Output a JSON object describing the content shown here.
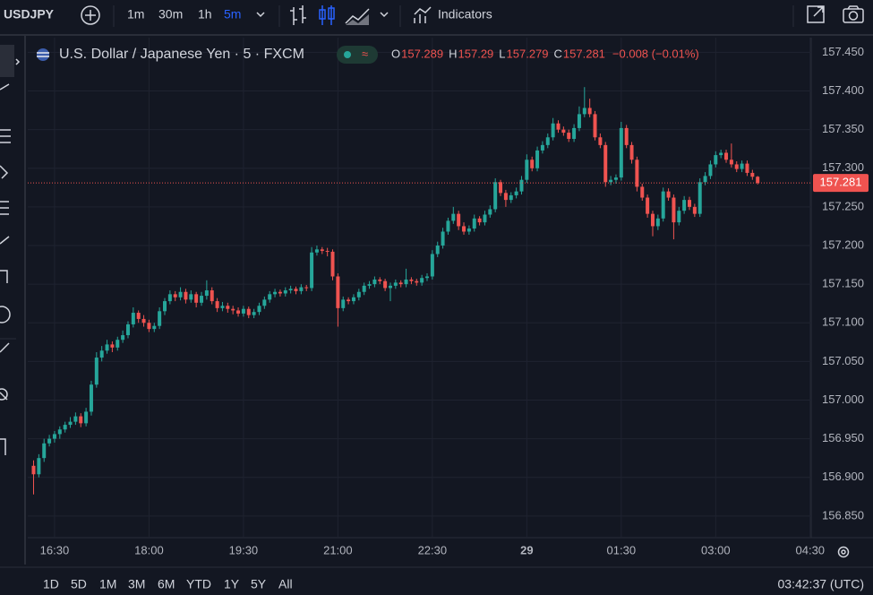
{
  "toolbar": {
    "symbol": "USDJPY",
    "intervals": [
      "1m",
      "30m",
      "1h",
      "5m"
    ],
    "active_interval": "5m",
    "indicators": "Indicators"
  },
  "chart_data": {
    "type": "candlestick",
    "title": "U.S. Dollar / Japanese Yen · 5 · FXCM",
    "ohlc_labels": [
      "O",
      "H",
      "L",
      "C"
    ],
    "change": "−0.008 (−0.01%)",
    "up_color": "#26a69a",
    "down_color": "#ef5350",
    "grid": true,
    "ylim": [
      156.822,
      157.469
    ],
    "yticks": [
      {
        "value": 157.45,
        "label": "157.450"
      },
      {
        "value": 157.4,
        "label": "157.400"
      },
      {
        "value": 157.35,
        "label": "157.350"
      },
      {
        "value": 157.3,
        "label": "157.300"
      },
      {
        "value": 157.25,
        "label": "157.250"
      },
      {
        "value": 157.2,
        "label": "157.200"
      },
      {
        "value": 157.15,
        "label": "157.150"
      },
      {
        "value": 157.1,
        "label": "157.100"
      },
      {
        "value": 157.05,
        "label": "157.050"
      },
      {
        "value": 157.0,
        "label": "157.000"
      },
      {
        "value": 156.95,
        "label": "156.950"
      },
      {
        "value": 156.9,
        "label": "156.900"
      },
      {
        "value": 156.85,
        "label": "156.850"
      }
    ],
    "xticks": [
      "16:30",
      "18:00",
      "19:30",
      "21:00",
      "22:30",
      {
        "value": "00:00",
        "label": "29"
      },
      "01:30",
      "03:00",
      "04:30"
    ],
    "x": [
      "16:10",
      "16:15",
      "16:20",
      "16:25",
      "16:30",
      "16:35",
      "16:40",
      "16:45",
      "16:50",
      "16:55",
      "17:00",
      "17:05",
      "17:10",
      "17:15",
      "17:20",
      "17:25",
      "17:30",
      "17:35",
      "17:40",
      "17:45",
      "17:50",
      "17:55",
      "18:00",
      "18:05",
      "18:10",
      "18:15",
      "18:20",
      "18:25",
      "18:30",
      "18:35",
      "18:40",
      "18:45",
      "18:50",
      "18:55",
      "19:00",
      "19:05",
      "19:10",
      "19:15",
      "19:20",
      "19:25",
      "19:30",
      "19:35",
      "19:40",
      "19:45",
      "19:50",
      "19:55",
      "20:00",
      "20:05",
      "20:10",
      "20:15",
      "20:20",
      "20:25",
      "20:30",
      "20:35",
      "20:40",
      "20:45",
      "20:50",
      "20:55",
      "21:00",
      "21:05",
      "21:10",
      "21:15",
      "21:20",
      "21:25",
      "21:30",
      "21:35",
      "21:40",
      "21:45",
      "21:50",
      "21:55",
      "22:00",
      "22:05",
      "22:10",
      "22:15",
      "22:20",
      "22:25",
      "22:30",
      "22:35",
      "22:40",
      "22:45",
      "22:50",
      "22:55",
      "23:00",
      "23:05",
      "23:10",
      "23:15",
      "23:20",
      "23:25",
      "23:30",
      "23:35",
      "23:40",
      "23:45",
      "23:50",
      "23:55",
      "00:00",
      "00:05",
      "00:10",
      "00:15",
      "00:20",
      "00:25",
      "00:30",
      "00:35",
      "00:40",
      "00:45",
      "00:50",
      "00:55",
      "01:00",
      "01:05",
      "01:10",
      "01:15",
      "01:20",
      "01:25",
      "01:30",
      "01:35",
      "01:40",
      "01:45",
      "01:50",
      "01:55",
      "02:00",
      "02:05",
      "02:10",
      "02:15",
      "02:20",
      "02:25",
      "02:30",
      "02:35",
      "02:40",
      "02:45",
      "02:50",
      "02:55",
      "03:00",
      "03:05",
      "03:10",
      "03:15",
      "03:20",
      "03:25",
      "03:30",
      "03:35",
      "03:40"
    ],
    "candles": [
      [
        156.915,
        156.922,
        156.878,
        156.904
      ],
      [
        156.904,
        156.93,
        156.9,
        156.925
      ],
      [
        156.925,
        156.95,
        156.92,
        156.944
      ],
      [
        156.944,
        156.955,
        156.94,
        156.95
      ],
      [
        156.95,
        156.96,
        156.945,
        156.956
      ],
      [
        156.956,
        156.966,
        156.95,
        156.962
      ],
      [
        156.962,
        156.972,
        156.958,
        156.968
      ],
      [
        156.968,
        156.978,
        156.964,
        156.972
      ],
      [
        156.972,
        156.984,
        156.968,
        156.979
      ],
      [
        156.979,
        156.983,
        156.965,
        156.97
      ],
      [
        156.97,
        156.99,
        156.966,
        156.985
      ],
      [
        156.985,
        157.025,
        156.98,
        157.02
      ],
      [
        157.02,
        157.062,
        157.016,
        157.055
      ],
      [
        157.055,
        157.07,
        157.05,
        157.064
      ],
      [
        157.064,
        157.078,
        157.06,
        157.072
      ],
      [
        157.072,
        157.076,
        157.062,
        157.068
      ],
      [
        157.068,
        157.082,
        157.064,
        157.078
      ],
      [
        157.078,
        157.09,
        157.074,
        157.084
      ],
      [
        157.084,
        157.102,
        157.08,
        157.098
      ],
      [
        157.098,
        157.12,
        157.094,
        157.113
      ],
      [
        157.113,
        157.116,
        157.1,
        157.105
      ],
      [
        157.105,
        157.11,
        157.095,
        157.1
      ],
      [
        157.1,
        157.104,
        157.088,
        157.092
      ],
      [
        157.092,
        157.1,
        157.088,
        157.096
      ],
      [
        157.096,
        157.12,
        157.092,
        157.115
      ],
      [
        157.115,
        157.132,
        157.11,
        157.128
      ],
      [
        157.128,
        157.142,
        157.124,
        157.137
      ],
      [
        157.137,
        157.141,
        157.128,
        157.133
      ],
      [
        157.133,
        157.146,
        157.129,
        157.14
      ],
      [
        157.14,
        157.144,
        157.125,
        157.13
      ],
      [
        157.13,
        157.142,
        157.126,
        157.137
      ],
      [
        157.137,
        157.14,
        157.12,
        157.126
      ],
      [
        157.126,
        157.14,
        157.122,
        157.135
      ],
      [
        157.135,
        157.155,
        157.13,
        157.142
      ],
      [
        157.142,
        157.146,
        157.124,
        157.128
      ],
      [
        157.128,
        157.132,
        157.114,
        157.119
      ],
      [
        157.119,
        157.127,
        157.115,
        157.122
      ],
      [
        157.122,
        157.126,
        157.113,
        157.118
      ],
      [
        157.118,
        157.122,
        157.111,
        157.116
      ],
      [
        157.116,
        157.12,
        157.108,
        157.112
      ],
      [
        157.112,
        157.122,
        157.108,
        157.118
      ],
      [
        157.118,
        157.121,
        157.106,
        157.11
      ],
      [
        157.11,
        157.118,
        157.106,
        157.114
      ],
      [
        157.114,
        157.126,
        157.11,
        157.122
      ],
      [
        157.122,
        157.134,
        157.118,
        157.13
      ],
      [
        157.13,
        157.141,
        157.126,
        157.137
      ],
      [
        157.137,
        157.144,
        157.133,
        157.14
      ],
      [
        157.14,
        157.143,
        157.134,
        157.138
      ],
      [
        157.138,
        157.146,
        157.134,
        157.142
      ],
      [
        157.142,
        157.148,
        157.138,
        157.144
      ],
      [
        157.144,
        157.147,
        157.137,
        157.141
      ],
      [
        157.141,
        157.15,
        157.137,
        157.146
      ],
      [
        157.146,
        157.149,
        157.141,
        157.145
      ],
      [
        157.145,
        157.198,
        157.141,
        157.191
      ],
      [
        157.191,
        157.2,
        157.187,
        157.195
      ],
      [
        157.195,
        157.198,
        157.189,
        157.193
      ],
      [
        157.193,
        157.197,
        157.186,
        157.192
      ],
      [
        157.192,
        157.195,
        157.155,
        157.16
      ],
      [
        157.16,
        157.164,
        157.095,
        157.119
      ],
      [
        157.119,
        157.134,
        157.115,
        157.13
      ],
      [
        157.13,
        157.133,
        157.124,
        157.128
      ],
      [
        157.128,
        157.137,
        157.124,
        157.133
      ],
      [
        157.133,
        157.144,
        157.129,
        157.14
      ],
      [
        157.14,
        157.152,
        157.136,
        157.148
      ],
      [
        157.148,
        157.154,
        157.144,
        157.15
      ],
      [
        157.15,
        157.16,
        157.146,
        157.156
      ],
      [
        157.156,
        157.159,
        157.15,
        157.154
      ],
      [
        157.154,
        157.157,
        157.141,
        157.145
      ],
      [
        157.145,
        157.152,
        157.128,
        157.148
      ],
      [
        157.148,
        157.156,
        157.144,
        157.152
      ],
      [
        157.152,
        157.155,
        157.146,
        157.15
      ],
      [
        157.15,
        157.17,
        157.146,
        157.156
      ],
      [
        157.156,
        157.159,
        157.15,
        157.154
      ],
      [
        157.154,
        157.157,
        157.148,
        157.152
      ],
      [
        157.152,
        157.162,
        157.148,
        157.158
      ],
      [
        157.158,
        157.164,
        157.154,
        157.16
      ],
      [
        157.16,
        157.194,
        157.156,
        157.189
      ],
      [
        157.189,
        157.205,
        157.185,
        157.2
      ],
      [
        157.2,
        157.223,
        157.196,
        157.218
      ],
      [
        157.218,
        157.236,
        157.214,
        157.232
      ],
      [
        157.232,
        157.25,
        157.228,
        157.241
      ],
      [
        157.241,
        157.245,
        157.22,
        157.225
      ],
      [
        157.225,
        157.23,
        157.214,
        157.218
      ],
      [
        157.218,
        157.226,
        157.214,
        157.222
      ],
      [
        157.222,
        157.24,
        157.218,
        157.235
      ],
      [
        157.235,
        157.238,
        157.226,
        157.23
      ],
      [
        157.23,
        157.245,
        157.226,
        157.24
      ],
      [
        157.24,
        157.252,
        157.236,
        157.247
      ],
      [
        157.247,
        157.287,
        157.243,
        157.282
      ],
      [
        157.282,
        157.285,
        157.264,
        157.268
      ],
      [
        157.268,
        157.272,
        157.25,
        157.259
      ],
      [
        157.259,
        157.269,
        157.255,
        157.265
      ],
      [
        157.265,
        157.275,
        157.261,
        157.27
      ],
      [
        157.27,
        157.29,
        157.266,
        157.285
      ],
      [
        157.285,
        157.318,
        157.281,
        157.311
      ],
      [
        157.311,
        157.315,
        157.296,
        157.3
      ],
      [
        157.3,
        157.328,
        157.296,
        157.323
      ],
      [
        157.323,
        157.335,
        157.319,
        157.33
      ],
      [
        157.33,
        157.345,
        157.326,
        157.34
      ],
      [
        157.34,
        157.365,
        157.336,
        157.358
      ],
      [
        157.358,
        157.362,
        157.346,
        157.35
      ],
      [
        157.35,
        157.354,
        157.342,
        157.346
      ],
      [
        157.346,
        157.35,
        157.334,
        157.338
      ],
      [
        157.338,
        157.357,
        157.334,
        157.352
      ],
      [
        157.352,
        157.38,
        157.348,
        157.37
      ],
      [
        157.37,
        157.405,
        157.366,
        157.378
      ],
      [
        157.378,
        157.39,
        157.366,
        157.37
      ],
      [
        157.37,
        157.374,
        157.336,
        157.34
      ],
      [
        157.34,
        157.345,
        157.326,
        157.33
      ],
      [
        157.33,
        157.334,
        157.276,
        157.282
      ],
      [
        157.282,
        157.29,
        157.278,
        157.285
      ],
      [
        157.285,
        157.292,
        157.28,
        157.288
      ],
      [
        157.288,
        157.36,
        157.284,
        157.352
      ],
      [
        157.352,
        157.356,
        157.326,
        157.33
      ],
      [
        157.33,
        157.334,
        157.306,
        157.311
      ],
      [
        157.311,
        157.315,
        157.27,
        157.276
      ],
      [
        157.276,
        157.28,
        157.258,
        157.262
      ],
      [
        157.262,
        157.266,
        157.236,
        157.241
      ],
      [
        157.241,
        157.245,
        157.212,
        157.225
      ],
      [
        157.225,
        157.24,
        157.22,
        157.235
      ],
      [
        157.235,
        157.275,
        157.231,
        157.27
      ],
      [
        157.27,
        157.274,
        157.258,
        157.262
      ],
      [
        157.262,
        157.266,
        157.208,
        157.23
      ],
      [
        157.23,
        157.25,
        157.226,
        157.245
      ],
      [
        157.245,
        157.264,
        157.241,
        157.259
      ],
      [
        157.259,
        157.263,
        157.246,
        157.25
      ],
      [
        157.25,
        157.254,
        157.237,
        157.241
      ],
      [
        157.241,
        157.287,
        157.237,
        157.282
      ],
      [
        157.282,
        157.295,
        157.278,
        157.29
      ],
      [
        157.29,
        157.31,
        157.286,
        157.305
      ],
      [
        157.305,
        157.322,
        157.301,
        157.317
      ],
      [
        157.317,
        157.324,
        157.313,
        157.32
      ],
      [
        157.32,
        157.324,
        157.307,
        157.311
      ],
      [
        157.311,
        157.332,
        157.301,
        157.305
      ],
      [
        157.305,
        157.309,
        157.295,
        157.299
      ],
      [
        157.299,
        157.31,
        157.295,
        157.306
      ],
      [
        157.306,
        157.31,
        157.29,
        157.294
      ],
      [
        157.294,
        157.298,
        157.285,
        157.289
      ],
      [
        157.289,
        157.29,
        157.279,
        157.281
      ]
    ]
  },
  "bottom": {
    "ranges": [
      "1D",
      "5D",
      "1M",
      "3M",
      "6M",
      "YTD",
      "1Y",
      "5Y",
      "All"
    ],
    "clock": "03:42:37 (UTC)"
  }
}
